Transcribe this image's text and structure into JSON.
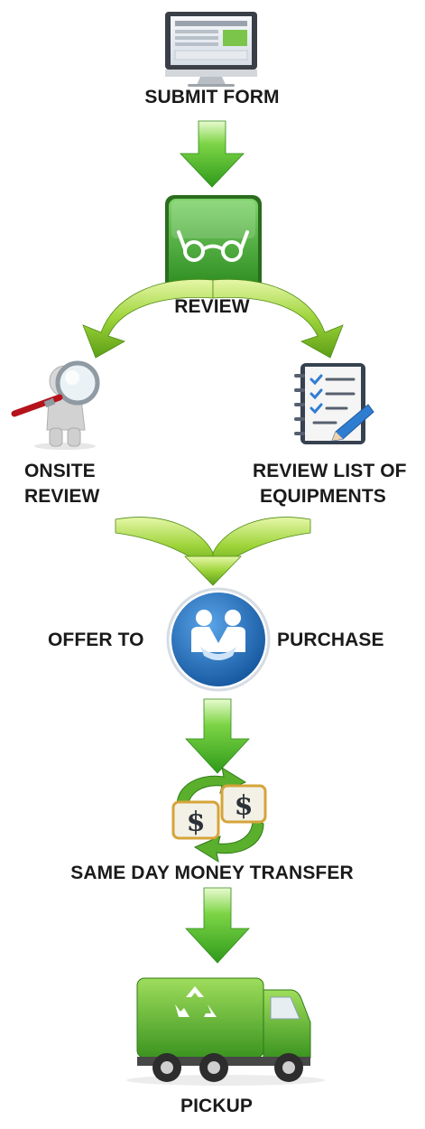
{
  "steps": {
    "submit_form": "SUBMIT FORM",
    "review": "REVIEW",
    "onsite_review_line1": "ONSITE",
    "onsite_review_line2": "REVIEW",
    "review_list_line1": "REVIEW LIST OF",
    "review_list_line2": "EQUIPMENTS",
    "offer_to": "OFFER TO",
    "purchase": "PURCHASE",
    "money_transfer": "SAME DAY MONEY TRANSFER",
    "pickup": "PICKUP"
  },
  "icons": {
    "computer": "monitor-icon",
    "review": "glasses-icon",
    "onsite": "magnifier-person-icon",
    "checklist": "checklist-icon",
    "handshake": "handshake-icon",
    "money": "money-exchange-icon",
    "truck": "recycling-truck-icon"
  },
  "colors": {
    "arrow_green": "#4caf2a",
    "arrow_light": "#c7ef7a",
    "review_box": "#3f9f2d",
    "handshake_blue": "#1f68b5",
    "dollar_gold": "#e2b13d"
  }
}
